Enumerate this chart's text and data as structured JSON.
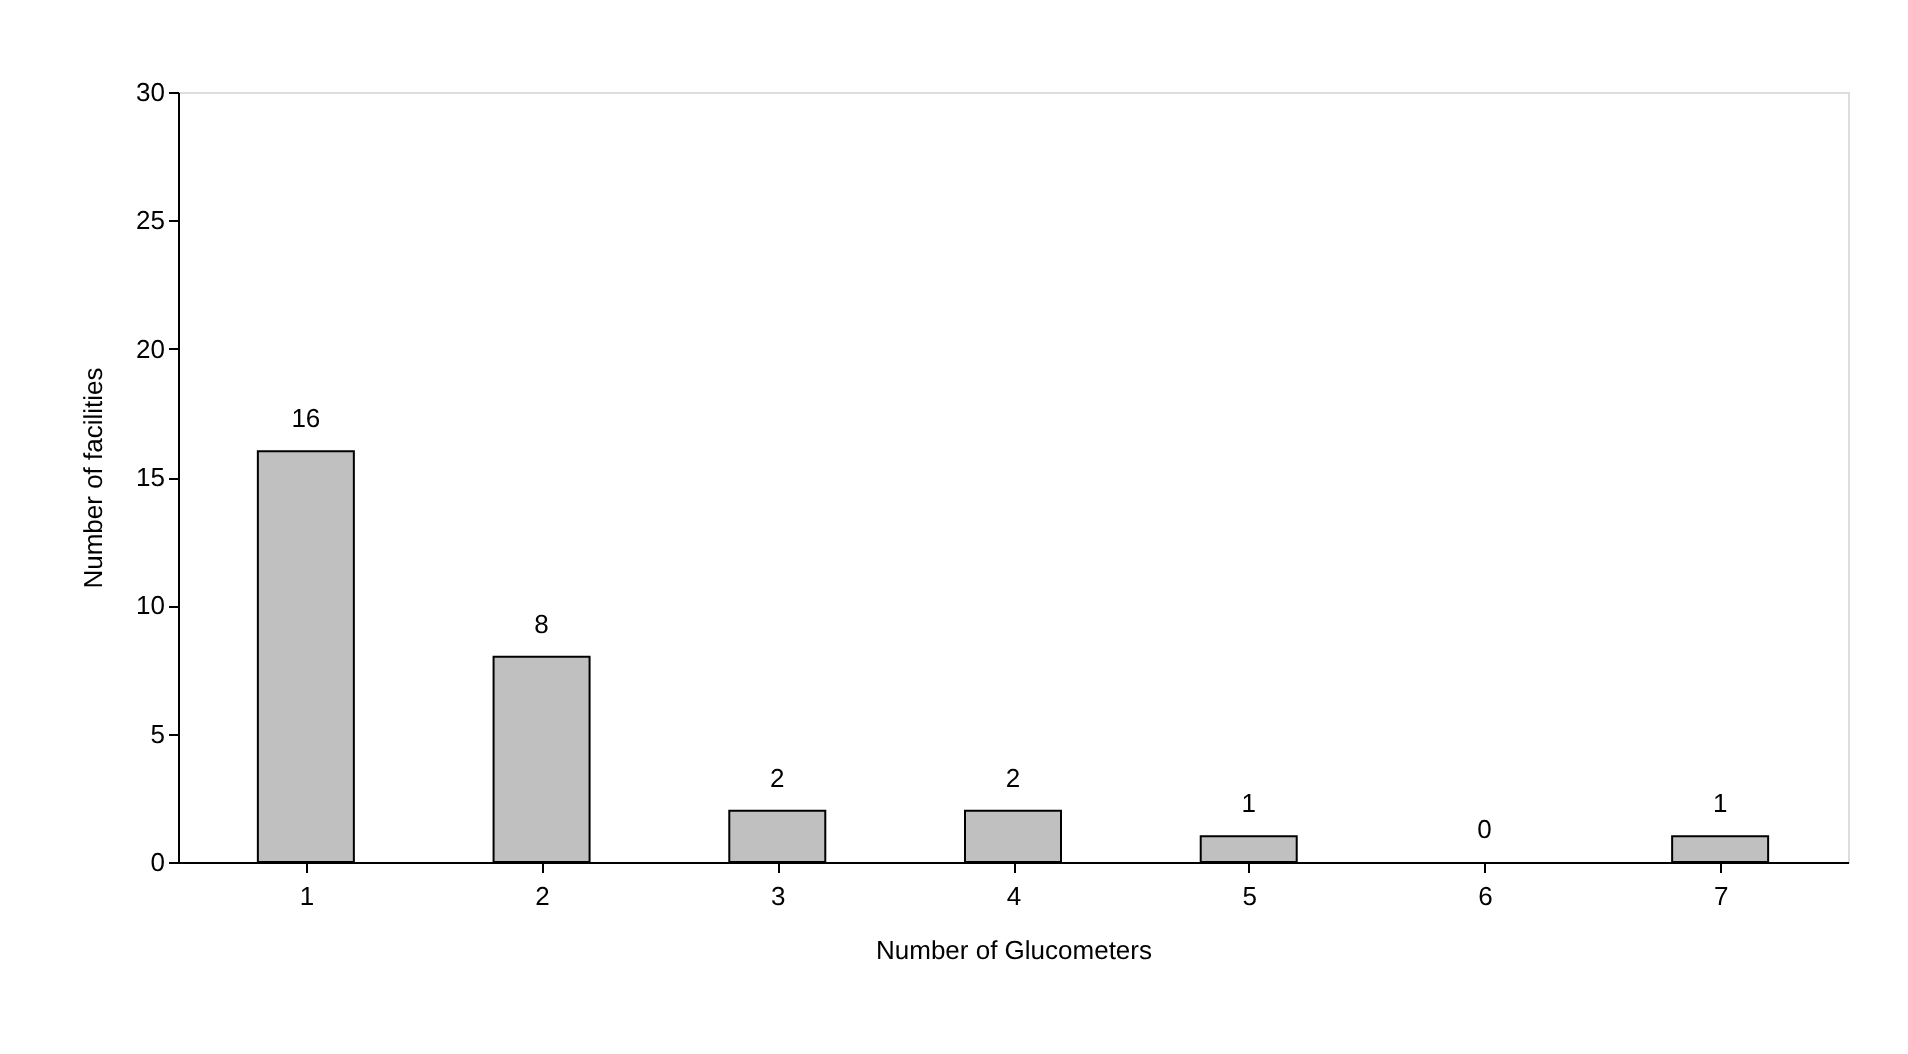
{
  "chart_data": {
    "type": "bar",
    "xlabel": "Number of Glucometers",
    "ylabel": "Number of facilities",
    "categories": [
      "1",
      "2",
      "3",
      "4",
      "5",
      "6",
      "7"
    ],
    "values": [
      16,
      8,
      2,
      2,
      1,
      0,
      1
    ],
    "color": "#c0c0c0",
    "ylim": [
      0,
      30
    ],
    "yticks": [
      0,
      5,
      10,
      15,
      20,
      25,
      30
    ],
    "grid": false,
    "data_labels": true
  }
}
